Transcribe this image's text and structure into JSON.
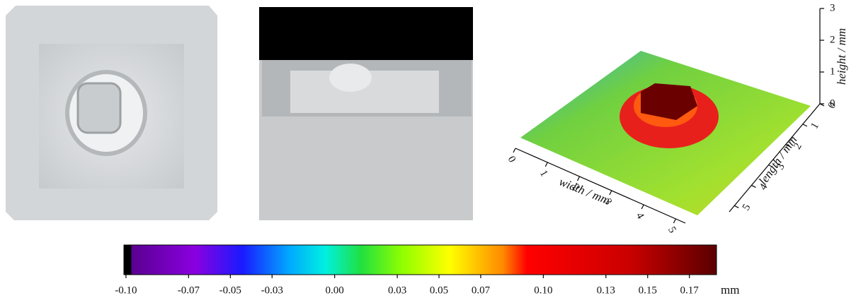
{
  "figure": {
    "surface_plot": {
      "height_axis": {
        "label": "height / mm",
        "lim": [
          0,
          3
        ],
        "ticks": [
          0,
          1,
          2,
          3
        ]
      },
      "width_axis": {
        "label": "width / mm",
        "lim": [
          0,
          5.3
        ],
        "ticks": [
          0,
          1,
          2,
          3,
          4,
          5
        ]
      },
      "length_axis": {
        "label": "length / mm",
        "lim": [
          0,
          5.3
        ],
        "ticks": [
          0,
          1,
          2,
          3,
          4,
          5
        ]
      }
    },
    "colorbar": {
      "lim": [
        -0.101,
        0.183
      ],
      "unit": "mm",
      "ticks": [
        {
          "value": -0.1,
          "label": "-0.10"
        },
        -0.07,
        -0.05,
        -0.03,
        {
          "value": 0,
          "label": "0.00"
        },
        0.03,
        0.05,
        0.07,
        {
          "value": 0.1,
          "label": "0.10"
        },
        0.13,
        0.15,
        0.17
      ]
    }
  }
}
